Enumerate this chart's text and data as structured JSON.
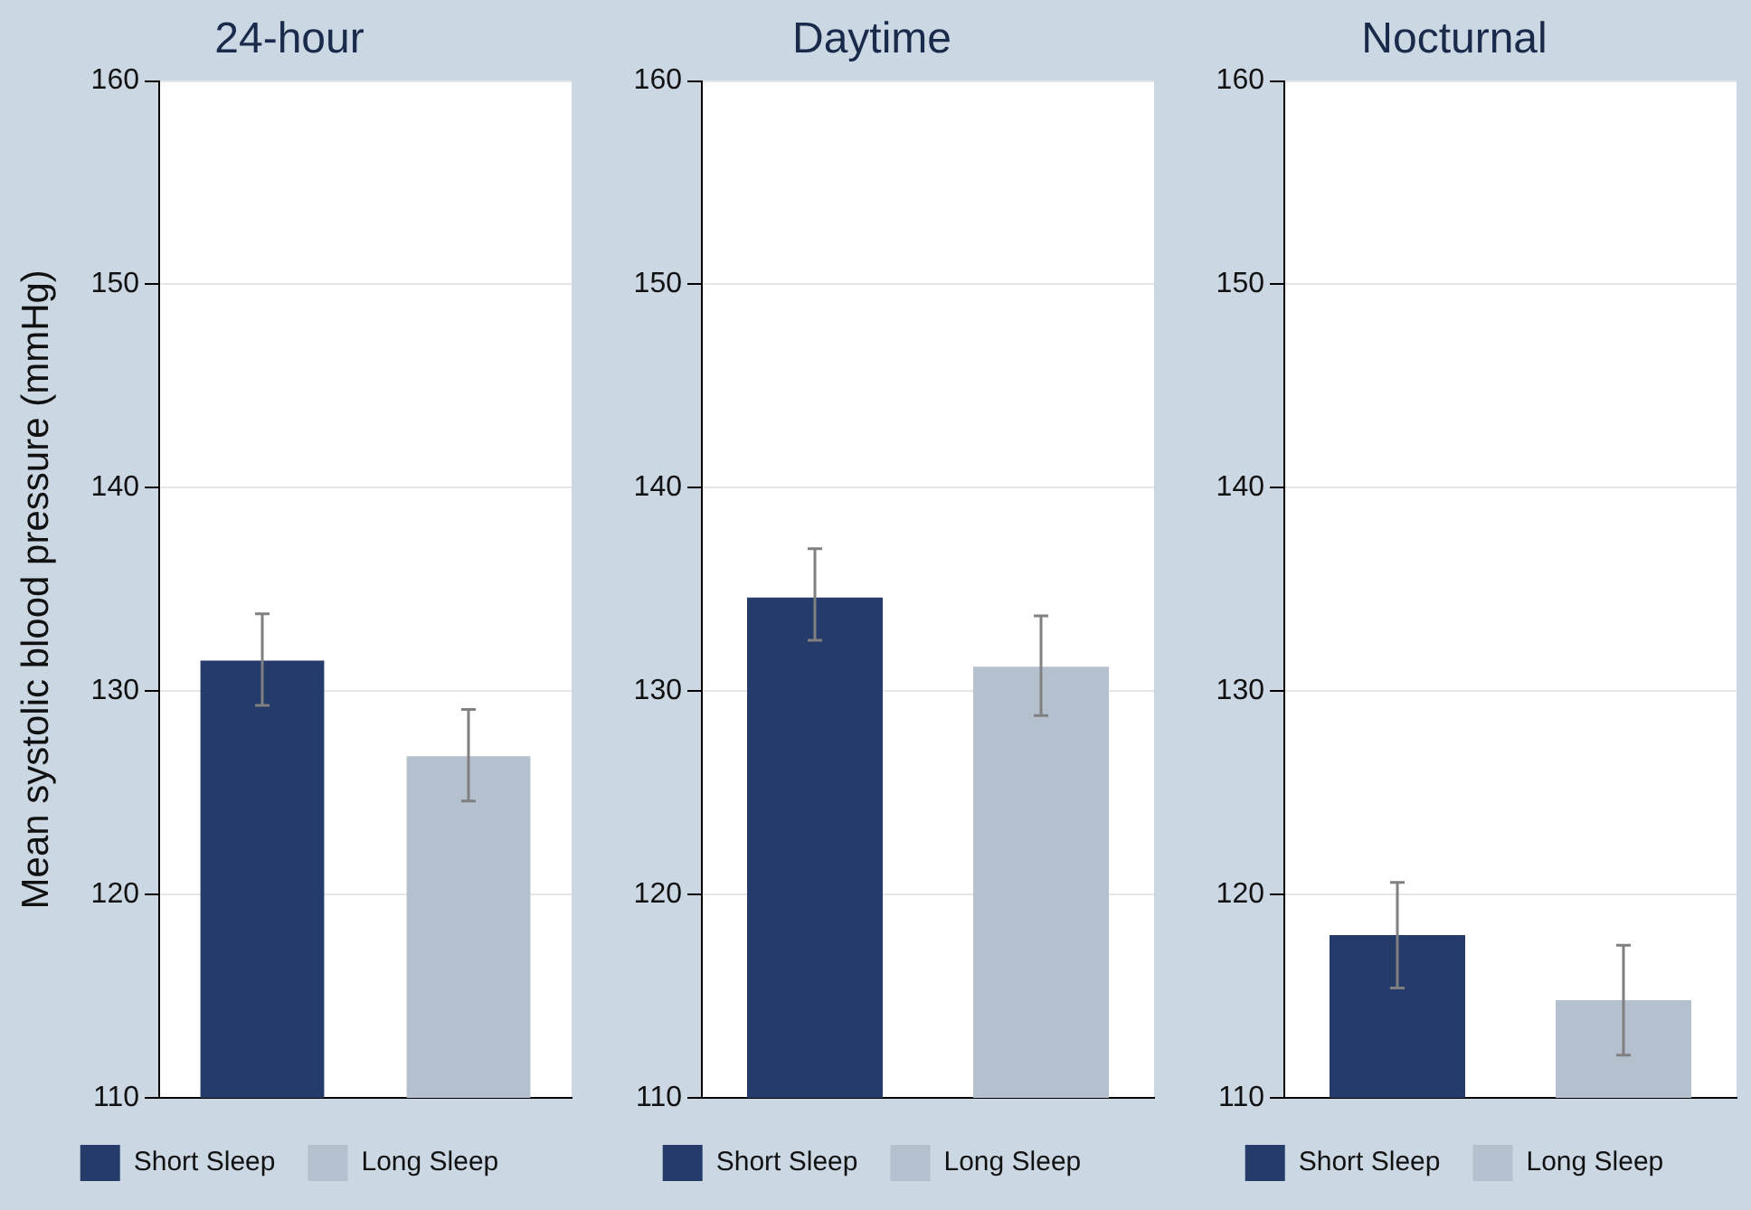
{
  "chart_data": [
    {
      "type": "bar",
      "title": "24-hour",
      "ylabel": "Mean systolic blood pressure (mmHg)",
      "categories": [
        null
      ],
      "series": [
        {
          "name": "Short Sleep",
          "color": "#253b6a",
          "values": [
            131.5
          ],
          "errors": [
            [
              129.3,
              133.8
            ]
          ]
        },
        {
          "name": "Long Sleep",
          "color": "#b4c0cd",
          "values": [
            126.8
          ],
          "errors": [
            [
              124.6,
              129.1
            ]
          ]
        }
      ],
      "ylim": [
        110,
        160
      ],
      "yticks": [
        110,
        120,
        130,
        140,
        150,
        160
      ],
      "grid": "y",
      "legend": "bottom"
    },
    {
      "type": "bar",
      "title": "Daytime",
      "categories": [
        null
      ],
      "series": [
        {
          "name": "Short Sleep",
          "color": "#253b6a",
          "values": [
            134.6
          ],
          "errors": [
            [
              132.5,
              137.0
            ]
          ]
        },
        {
          "name": "Long Sleep",
          "color": "#b4c0cd",
          "values": [
            131.2
          ],
          "errors": [
            [
              128.8,
              133.7
            ]
          ]
        }
      ],
      "ylim": [
        110,
        160
      ],
      "yticks": [
        110,
        120,
        130,
        140,
        150,
        160
      ],
      "grid": "y",
      "legend": "bottom"
    },
    {
      "type": "bar",
      "title": "Nocturnal",
      "categories": [
        null
      ],
      "series": [
        {
          "name": "Short Sleep",
          "color": "#253b6a",
          "values": [
            118.0
          ],
          "errors": [
            [
              115.4,
              120.6
            ]
          ]
        },
        {
          "name": "Long Sleep",
          "color": "#b4c0cd",
          "values": [
            114.8
          ],
          "errors": [
            [
              112.1,
              117.5
            ]
          ]
        }
      ],
      "ylim": [
        110,
        160
      ],
      "yticks": [
        110,
        120,
        130,
        140,
        150,
        160
      ],
      "grid": "y",
      "legend": "bottom"
    }
  ]
}
